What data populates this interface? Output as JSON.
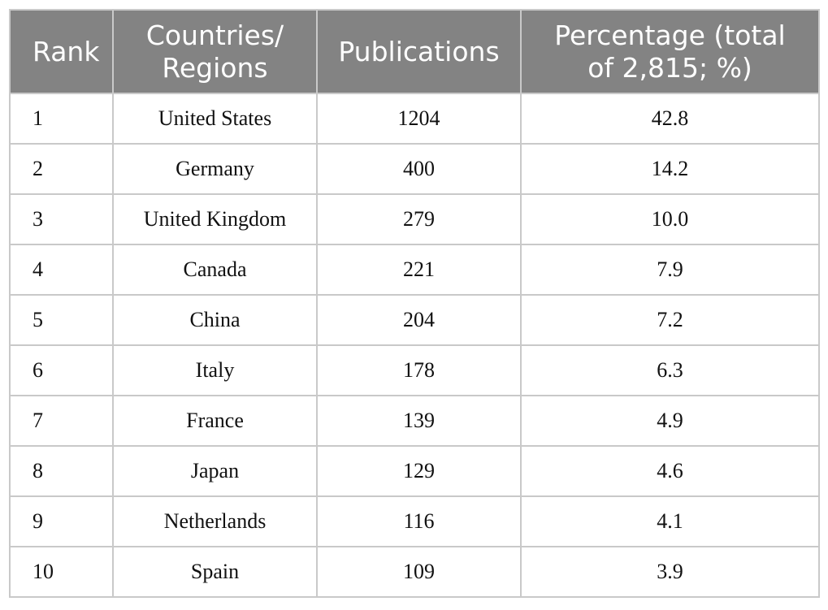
{
  "table": {
    "headers": [
      [
        "Rank"
      ],
      [
        "Countries/",
        "Regions"
      ],
      [
        "Publications"
      ],
      [
        "Percentage (total",
        "of 2,815; %)"
      ]
    ],
    "rows": [
      [
        "1",
        "United States",
        "1204",
        "42.8"
      ],
      [
        "2",
        "Germany",
        "400",
        "14.2"
      ],
      [
        "3",
        "United Kingdom",
        "279",
        "10.0"
      ],
      [
        "4",
        "Canada",
        "221",
        "7.9"
      ],
      [
        "5",
        "China",
        "204",
        "7.2"
      ],
      [
        "6",
        "Italy",
        "178",
        "6.3"
      ],
      [
        "7",
        "France",
        "139",
        "4.9"
      ],
      [
        "8",
        "Japan",
        "129",
        "4.6"
      ],
      [
        "9",
        "Netherlands",
        "116",
        "4.1"
      ],
      [
        "10",
        "Spain",
        "109",
        "3.9"
      ]
    ]
  },
  "colors": {
    "header_bg": "#838383",
    "header_text": "#ffffff",
    "grid": "#c9c9c9"
  }
}
